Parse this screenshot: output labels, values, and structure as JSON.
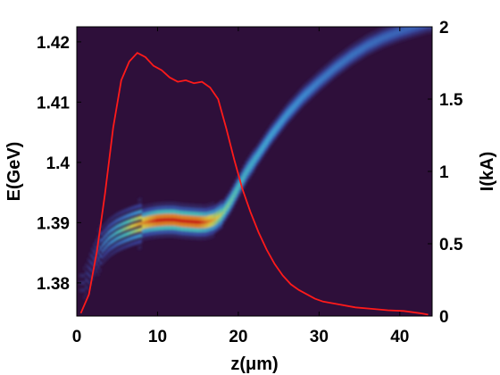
{
  "chart_data": {
    "type": "heatmap",
    "title": "",
    "xlabel": "z(μm)",
    "ylabel_left": "E(GeV)",
    "ylabel_right": "I(kA)",
    "xlim": [
      0,
      44
    ],
    "ylim_left": [
      1.3745,
      1.4225
    ],
    "ylim_right": [
      0,
      2
    ],
    "x_ticks": [
      0,
      10,
      20,
      30,
      40
    ],
    "y_left_ticks": [
      1.38,
      1.39,
      1.4,
      1.41,
      1.42
    ],
    "y_left_tick_labels": [
      "1.38",
      "1.39",
      "1.4",
      "1.41",
      "1.42"
    ],
    "y_right_ticks": [
      0,
      0.5,
      1,
      1.5,
      2
    ],
    "y_right_tick_labels": [
      "0",
      "0.5",
      "1",
      "1.5",
      "2"
    ],
    "background_color": "#2e0f3a",
    "line_color": "#ff1a1a",
    "colormap": [
      "#2e0f3a",
      "#3a4fb0",
      "#3fa0e8",
      "#4ee0d0",
      "#f6f34a",
      "#ff9a20",
      "#e81c10"
    ],
    "series": [
      {
        "kind": "line",
        "axis": "right",
        "x": [
          0.5,
          1.5,
          2.5,
          3.5,
          4.5,
          5.5,
          6.5,
          7.5,
          8.5,
          9.5,
          10.5,
          11.5,
          12.5,
          13.5,
          14.5,
          15.5,
          16.5,
          17.5,
          18.5,
          19.5,
          20.5,
          21.5,
          22.5,
          23.5,
          24.5,
          25.5,
          26.5,
          27.5,
          28.5,
          29.5,
          30.5,
          32.5,
          34.5,
          36.5,
          38.5,
          40.5,
          42.5,
          43.5
        ],
        "y": [
          0.02,
          0.15,
          0.45,
          0.85,
          1.3,
          1.63,
          1.76,
          1.82,
          1.79,
          1.73,
          1.7,
          1.65,
          1.62,
          1.63,
          1.61,
          1.62,
          1.58,
          1.5,
          1.3,
          1.08,
          0.88,
          0.72,
          0.58,
          0.46,
          0.36,
          0.28,
          0.22,
          0.18,
          0.15,
          0.12,
          0.1,
          0.08,
          0.06,
          0.05,
          0.04,
          0.035,
          0.02,
          0.01
        ]
      },
      {
        "kind": "density_ridge",
        "axis": "left",
        "x": [
          1,
          2,
          3,
          4,
          5,
          6,
          7,
          8,
          9,
          10,
          11,
          12,
          13,
          14,
          15,
          16,
          17,
          18,
          19,
          20,
          21,
          22,
          24,
          26,
          28,
          30,
          32,
          34,
          36,
          38,
          40,
          42,
          43.5
        ],
        "y": [
          1.38,
          1.3835,
          1.386,
          1.3875,
          1.3884,
          1.389,
          1.3895,
          1.3899,
          1.3902,
          1.3904,
          1.3905,
          1.3905,
          1.3903,
          1.3902,
          1.3901,
          1.3901,
          1.3905,
          1.3915,
          1.3935,
          1.396,
          1.3985,
          1.4005,
          1.4045,
          1.408,
          1.411,
          1.4135,
          1.4158,
          1.4178,
          1.4195,
          1.4208,
          1.4218,
          1.4226,
          1.4232
        ]
      }
    ]
  }
}
